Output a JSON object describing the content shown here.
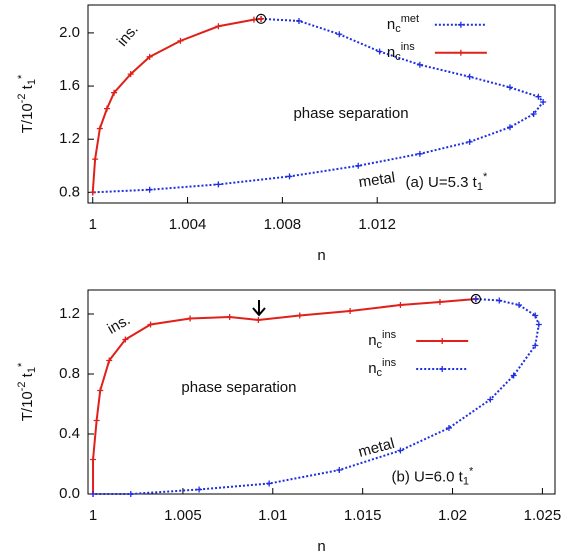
{
  "chart_data": [
    {
      "type": "line",
      "xlabel": "n",
      "ylabel": [
        {
          "text": "T/10"
        },
        {
          "text": "-2",
          "script": "sup"
        },
        {
          "text": " t"
        },
        {
          "text": "1",
          "script": "sub"
        },
        {
          "text": "*",
          "script": "sup"
        }
      ],
      "xlim": [
        0.9998,
        1.0195
      ],
      "ylim": [
        0.72,
        2.21
      ],
      "xticks": [
        1,
        1.004,
        1.008,
        1.012
      ],
      "yticks": [
        {
          "value": 0.8,
          "label": "0.8"
        },
        1.2,
        1.6,
        {
          "value": 2.0,
          "label": "2.0"
        }
      ],
      "legend": "upper right",
      "ins_label": "ins.",
      "region_label": "phase separation",
      "metal_label": "metal",
      "panel_label": [
        {
          "text": "(a) U=5.3 t"
        },
        {
          "text": "1",
          "script": "sub"
        },
        {
          "text": "*",
          "script": "sup"
        }
      ],
      "series": [
        {
          "name": [
            {
              "text": "n"
            },
            {
              "text": "c",
              "script": "sub"
            },
            {
              "text": "met",
              "script": "sup"
            }
          ],
          "color": "#1f2fe0",
          "style": "dotted",
          "x": [
            1.0071,
            1.0087,
            1.0104,
            1.0121,
            1.0138,
            1.0159,
            1.0176,
            1.0188,
            1.019,
            1.0186,
            1.0176,
            1.0159,
            1.0138,
            1.0112,
            1.0083,
            1.0053,
            1.0024,
            1
          ],
          "values": [
            2.106,
            2.09,
            1.99,
            1.86,
            1.76,
            1.67,
            1.59,
            1.52,
            1.48,
            1.39,
            1.29,
            1.18,
            1.09,
            1.0,
            0.92,
            0.86,
            0.82,
            0.8
          ]
        },
        {
          "name": [
            {
              "text": "n"
            },
            {
              "text": "c",
              "script": "sub"
            },
            {
              "text": "ins",
              "script": "sup"
            }
          ],
          "color": "#e0201a",
          "style": "solid",
          "x": [
            1,
            1.0001,
            1.0003,
            1.0006,
            1.0009,
            1.0016,
            1.0024,
            1.0037,
            1.0053,
            1.0068,
            1.0071
          ],
          "values": [
            0.8,
            1.05,
            1.28,
            1.43,
            1.55,
            1.69,
            1.82,
            1.94,
            2.05,
            2.1,
            2.106
          ]
        }
      ]
    },
    {
      "type": "line",
      "xlabel": "n",
      "ylabel": [
        {
          "text": "T/10"
        },
        {
          "text": "-2",
          "script": "sup"
        },
        {
          "text": " t"
        },
        {
          "text": "1",
          "script": "sub"
        },
        {
          "text": "*",
          "script": "sup"
        }
      ],
      "xlim": [
        0.99972,
        1.0257
      ],
      "ylim": [
        0,
        1.36
      ],
      "xticks": [
        1,
        1.005,
        1.01,
        1.015,
        1.02,
        1.025
      ],
      "yticks": [
        {
          "value": 0,
          "label": "0.0"
        },
        0.4,
        0.8,
        1.2
      ],
      "legend": "upper right",
      "ins_label": "ins.",
      "region_label": "phase separation",
      "metal_label": "metal",
      "panel_label": [
        {
          "text": "(b) U=6.0 t"
        },
        {
          "text": "1",
          "script": "sub"
        },
        {
          "text": "*",
          "script": "sup"
        }
      ],
      "series": [
        {
          "name": [
            {
              "text": "n"
            },
            {
              "text": "c",
              "script": "sub"
            },
            {
              "text": "ins",
              "script": "sup"
            }
          ],
          "color": "#e0201a",
          "style": "solid",
          "x": [
            1,
            1,
            1.0002,
            1.0004,
            1.0009,
            1.0018,
            1.0032,
            1.0054,
            1.0076,
            1.0092,
            1.0115,
            1.0143,
            1.0171,
            1.0193,
            1.0213
          ],
          "values": [
            0,
            0.23,
            0.49,
            0.69,
            0.89,
            1.03,
            1.13,
            1.17,
            1.18,
            1.16,
            1.19,
            1.22,
            1.26,
            1.28,
            1.3
          ]
        },
        {
          "name": [
            {
              "text": "n"
            },
            {
              "text": "c",
              "script": "sub"
            },
            {
              "text": "ins",
              "script": "sup"
            }
          ],
          "color": "#1f2fe0",
          "style": "dotted",
          "x": [
            1.0213,
            1.0226,
            1.0237,
            1.0246,
            1.0248,
            1.0246,
            1.0234,
            1.0221,
            1.0198,
            1.0171,
            1.0137,
            1.0098,
            1.0059,
            1.0021,
            1
          ],
          "values": [
            1.3,
            1.29,
            1.26,
            1.19,
            1.13,
            0.99,
            0.79,
            0.63,
            0.44,
            0.29,
            0.16,
            0.07,
            0.03,
            0,
            0
          ]
        }
      ]
    }
  ]
}
